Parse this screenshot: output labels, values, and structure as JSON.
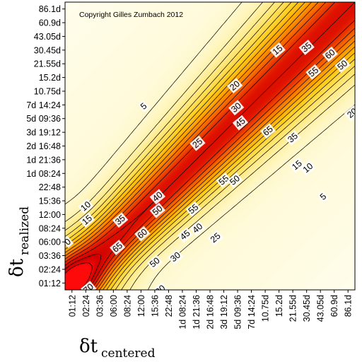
{
  "chart_data": {
    "type": "heatmap",
    "title": "",
    "copyright": "Copyright Gilles Zumbach 2012",
    "xlabel": {
      "symbol": "δt",
      "subscript": "centered"
    },
    "ylabel": {
      "symbol": "δt",
      "subscript": "realized"
    },
    "categories": [
      "01:12",
      "02:24",
      "03:36",
      "06:00",
      "08:24",
      "12:00",
      "15:36",
      "22:48",
      "1d 08:24",
      "1d 21:36",
      "2d 16:48",
      "3d 19:12",
      "5d 09:36",
      "7d 14:24",
      "10.75d",
      "15.2d",
      "21.55d",
      "30.45d",
      "43.05d",
      "60.9d",
      "86.1d"
    ],
    "x_ticks": [
      "01:12",
      "02:24",
      "03:36",
      "06:00",
      "08:24",
      "12:00",
      "15:36",
      "22:48",
      "1d 08:24",
      "1d 21:36",
      "2d 16:48",
      "3d 19:12",
      "5d 09:36",
      "7d 14:24",
      "10.75d",
      "15.2d",
      "21.55d",
      "30.45d",
      "43.05d",
      "60.9d",
      "86.1d"
    ],
    "y_ticks": [
      "01:12",
      "02:24",
      "03:36",
      "06:00",
      "08:24",
      "12:00",
      "15:36",
      "22:48",
      "1d 08:24",
      "1d 21:36",
      "2d 16:48",
      "3d 19:12",
      "5d 09:36",
      "7d 14:24",
      "10.75d",
      "15.2d",
      "21.55d",
      "30.45d",
      "43.05d",
      "60.9d",
      "86.1d"
    ],
    "contour_levels": [
      5,
      10,
      15,
      20,
      25,
      30,
      35,
      40,
      45,
      50,
      55,
      60,
      65,
      70
    ],
    "contour_labels": [
      {
        "text": "5",
        "x": 5.2,
        "y": 12.9
      },
      {
        "text": "15",
        "x": 14.9,
        "y": 17.0
      },
      {
        "text": "20",
        "x": 11.8,
        "y": 14.4
      },
      {
        "text": "35",
        "x": 17.0,
        "y": 17.2
      },
      {
        "text": "55",
        "x": 17.5,
        "y": 15.4
      },
      {
        "text": "60",
        "x": 18.7,
        "y": 16.7
      },
      {
        "text": "50",
        "x": 19.6,
        "y": 15.9
      },
      {
        "text": "30",
        "x": 11.9,
        "y": 12.8
      },
      {
        "text": "45",
        "x": 12.2,
        "y": 11.7
      },
      {
        "text": "65",
        "x": 14.2,
        "y": 11.1
      },
      {
        "text": "35",
        "x": 16.0,
        "y": 10.6
      },
      {
        "text": "20",
        "x": 20.3,
        "y": 12.4
      },
      {
        "text": "25",
        "x": 9.1,
        "y": 10.2
      },
      {
        "text": "55",
        "x": 11.0,
        "y": 7.5
      },
      {
        "text": "50",
        "x": 11.8,
        "y": 7.5
      },
      {
        "text": "15",
        "x": 16.3,
        "y": 8.6
      },
      {
        "text": "10",
        "x": 17.1,
        "y": 8.4
      },
      {
        "text": "5",
        "x": 18.2,
        "y": 6.3
      },
      {
        "text": "40",
        "x": 6.2,
        "y": 6.3
      },
      {
        "text": "50",
        "x": 6.2,
        "y": 5.3
      },
      {
        "text": "55",
        "x": 8.8,
        "y": 5.4
      },
      {
        "text": "35",
        "x": 3.5,
        "y": 4.6
      },
      {
        "text": "60",
        "x": 5.1,
        "y": 3.6
      },
      {
        "text": "45",
        "x": 8.2,
        "y": 3.5
      },
      {
        "text": "40",
        "x": 9.1,
        "y": 4.0
      },
      {
        "text": "25",
        "x": 10.4,
        "y": 3.3
      },
      {
        "text": "10",
        "x": 1.0,
        "y": 5.6
      },
      {
        "text": "15",
        "x": 1.1,
        "y": 4.6
      },
      {
        "text": "65",
        "x": 3.3,
        "y": 2.6
      },
      {
        "text": "50",
        "x": 6.0,
        "y": 1.5
      },
      {
        "text": "30",
        "x": 7.5,
        "y": 1.9
      },
      {
        "text": "0",
        "x": -0.3,
        "y": 3.0
      },
      {
        "text": "70",
        "x": 1.2,
        "y": -0.4
      },
      {
        "text": "65",
        "x": 1.9,
        "y": -1.3
      },
      {
        "text": "35",
        "x": 3.9,
        "y": -1.2
      },
      {
        "text": "20",
        "x": 6.4,
        "y": -0.5
      }
    ],
    "grid": false,
    "legend": "none",
    "colors": {
      "low": "#fffce6",
      "mid": "#ffd21a",
      "high": "#dc0000",
      "peak": "#ff0d0d"
    }
  }
}
